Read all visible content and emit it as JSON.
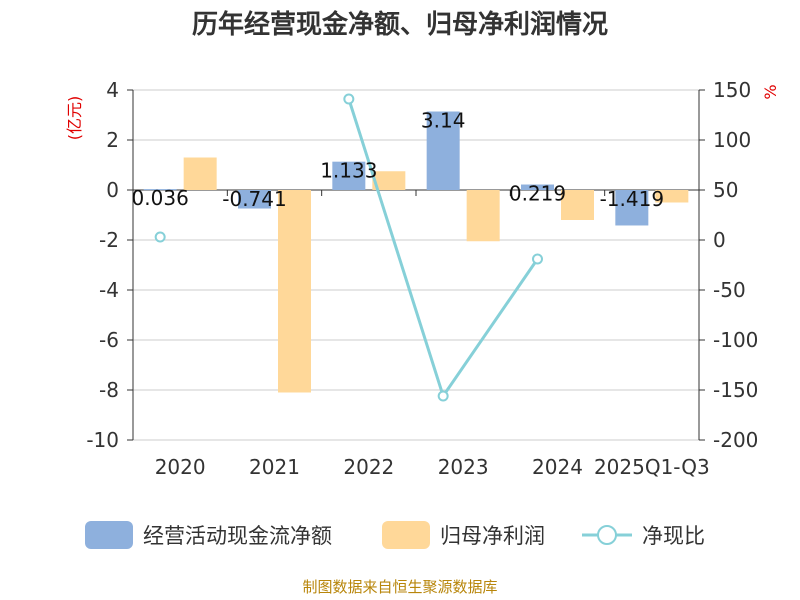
{
  "chart_data": {
    "type": "bar",
    "title": "历年经营现金净额、归母净利润情况",
    "left_unit": "(亿元)",
    "right_unit": "%",
    "categories": [
      "2020",
      "2021",
      "2022",
      "2023",
      "2024",
      "2025Q1-Q3"
    ],
    "ylim_left": [
      -10,
      4
    ],
    "yticks_left": [
      "4",
      "2",
      "0",
      "-2",
      "-4",
      "-6",
      "-8",
      "-10"
    ],
    "ylim_right": [
      -200,
      150
    ],
    "yticks_right": [
      "150",
      "100",
      "50",
      "0",
      "-50",
      "-100",
      "-150",
      "-200"
    ],
    "grid": true,
    "legend_position": "bottom",
    "series": [
      {
        "name": "经营活动现金流净额",
        "type": "bar",
        "color": "#8eb0dd",
        "values": [
          0.036,
          -0.741,
          1.133,
          3.14,
          0.219,
          -1.419
        ],
        "labels": [
          "0.036",
          "-0.741",
          "1.133",
          "3.14",
          "0.219",
          "-1.419"
        ]
      },
      {
        "name": "归母净利润",
        "type": "bar",
        "color": "#ffd899",
        "values": [
          1.3,
          -8.1,
          0.75,
          -2.05,
          -1.2,
          -0.5
        ]
      },
      {
        "name": "净现比",
        "type": "line",
        "color": "#86d0d8",
        "values": [
          3,
          null,
          141,
          -156,
          -19,
          null
        ]
      }
    ],
    "source": "制图数据来自恒生聚源数据库"
  }
}
